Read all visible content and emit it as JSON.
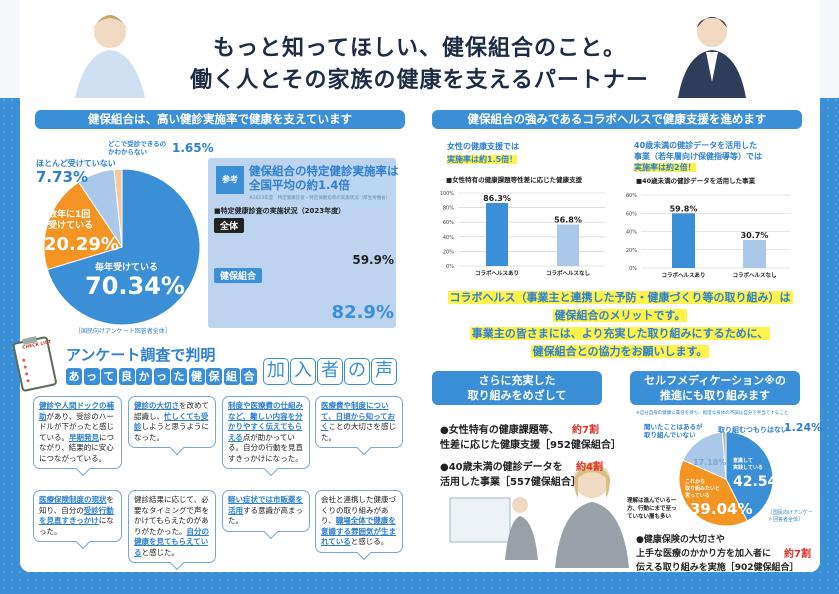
{
  "header": {
    "title1": "もっと知ってほしい、健保組合のこと。",
    "title2": "働く人とその家族の健康を支えるパートナー"
  },
  "left": {
    "heading": "健保組合は、高い健診実施率で健康を支えています",
    "pie": {
      "slices": [
        {
          "label": "毎年受けている",
          "value": 70.34,
          "color": "#3b8fd6"
        },
        {
          "label": "数年に1回受けている",
          "value": 20.29,
          "color": "#f39423"
        },
        {
          "label": "ほとんど受けていない",
          "value": 7.73,
          "color": "#a9c8ea"
        },
        {
          "label": "どこで受診できるのかわからない",
          "value": 1.65,
          "color": "#f5c9a0"
        }
      ],
      "display": [
        "70.34%",
        "20.29%",
        "7.73%",
        "1.65%"
      ],
      "label_lines": {
        "l2a": "数年に1回",
        "l2b": "受けている",
        "l4a": "どこで受診できるの",
        "l4b": "かわからない"
      },
      "source": "［国民向けアンケート回答者全体］"
    },
    "ref": {
      "tag": "参考",
      "title1": "健保組合の特定健診実施率は",
      "title2": "全国平均の約1.4倍",
      "note": "※2023年度　特定健康診査・特定保健指導の実施状況（厚生労働省）",
      "subtitle": "■特定健康診査の実施状況（2023年度）",
      "all_label": "全体",
      "all_value": "59.9%",
      "all_rate": 59.9,
      "kenpo_label": "健保組合",
      "kenpo_value": "82.9%",
      "kenpo_rate": 82.9
    }
  },
  "voices": {
    "heading": "アンケート調査で判明",
    "chips": [
      "あ",
      "っ",
      "て",
      "良",
      "か",
      "っ",
      "た",
      "健",
      "保",
      "組",
      "合"
    ],
    "big": [
      "加",
      "入",
      "者",
      "の",
      "声"
    ],
    "clipboard": "CHECK LIST",
    "bubbles": [
      [
        {
          "t": "健診や人間ドックの補助",
          "u": 1
        },
        {
          "t": "があり、受診のハードルが下がったと感じている。"
        },
        {
          "t": "早期発見",
          "u": 1
        },
        {
          "t": "につながり、結果的に安心につながっている。"
        }
      ],
      [
        {
          "t": "健診の大切さ",
          "u": 1
        },
        {
          "t": "を改めて認識し、"
        },
        {
          "t": "忙しくても受診",
          "u": 1
        },
        {
          "t": "しようと思うようになった。"
        }
      ],
      [
        {
          "t": "制度や医療費の仕組みなど、難しい内容を分かりやすく伝えてもらえる",
          "u": 1
        },
        {
          "t": "点が助かっている。自分の行動を見直すきっかけになった。"
        }
      ],
      [
        {
          "t": "医療費や制度について、日頃から知っておく",
          "u": 1
        },
        {
          "t": "ことの大切さを感じた。"
        }
      ],
      [
        {
          "t": "医療保険制度の現状",
          "u": 1
        },
        {
          "t": "を知り、自分の"
        },
        {
          "t": "受診行動を見直すきっかけ",
          "u": 1
        },
        {
          "t": "になった。"
        }
      ],
      [
        {
          "t": "健診結果に応じて、必要なタイミングで声をかけてもらえたのがありがたかった。"
        },
        {
          "t": "自分の健康を見てもらえている",
          "u": 1
        },
        {
          "t": "と感じた。"
        }
      ],
      [
        {
          "t": "軽い症状では市販薬を活用",
          "u": 1
        },
        {
          "t": "する意識が高まった。"
        }
      ],
      [
        {
          "t": "会社と連携した健康づくりの取り組みがあり、"
        },
        {
          "t": "職場全体で健康を意識する雰囲気が生まれている",
          "u": 1
        },
        {
          "t": "と感じる。"
        }
      ]
    ]
  },
  "right": {
    "heading": "健保組合の強みであるコラボヘルスで健康支援を進めます",
    "chart1_intro1": "女性の健康支援では",
    "chart1_intro2": "実施率は約1.5倍！",
    "chart2_intro1": "40歳未満の健診データを活用した",
    "chart2_intro2": "事業（若年層向け保健指導等）では",
    "chart2_intro3": "実施率は約2倍！",
    "message": [
      "コラボヘルス（事業主と連携した予防・健康づくり等の取り組み）は",
      "健保組合のメリットです。",
      "事業主の皆さまには、より充実した取り組みにするために、",
      "健保組合との協力をお願いします。"
    ]
  },
  "chart_data": [
    {
      "type": "bar",
      "title": "■女性特有の健康課題等性差に応じた健康支援",
      "categories": [
        "コラボヘルスあり",
        "コラボヘルスなし"
      ],
      "values": [
        86.3,
        56.8
      ],
      "labels": [
        "86.3%",
        "56.8%"
      ],
      "ylim": [
        0,
        100
      ],
      "ticks": [
        "0%",
        "20%",
        "40%",
        "60%",
        "80%",
        "100%"
      ],
      "colors": [
        "#3b8fd6",
        "#a9c8ea"
      ]
    },
    {
      "type": "bar",
      "title": "■40歳未満の健診データを活用した事業",
      "categories": [
        "コラボヘルスあり",
        "コラボヘルスなし"
      ],
      "values": [
        59.8,
        30.7
      ],
      "labels": [
        "59.8%",
        "30.7%"
      ],
      "ylim": [
        0,
        80
      ],
      "ticks": [
        "0%",
        "20%",
        "40%",
        "60%",
        "80%"
      ],
      "colors": [
        "#3b8fd6",
        "#a9c8ea"
      ]
    }
  ],
  "future": {
    "heading1": "さらに充実した",
    "heading2": "取り組みをめざして",
    "items": [
      {
        "l1": "●女性特有の健康課題等、",
        "l2": "性差に応じた健康支援［952健保組合］",
        "badge": "約7割"
      },
      {
        "l1": "●40歳未満の健診データを",
        "l2": "活用した事業［557健保組合］",
        "badge": "約4割"
      }
    ]
  },
  "selfmed": {
    "heading1": "セルフメディケーション※の",
    "heading2": "推進にも取り組みます",
    "note": "※自分自身の健康に責任を持ち、軽度な身体の不調は自分で手当てすること",
    "pie": {
      "slices": [
        {
          "label": "意識して実践している",
          "value": 42.54,
          "color": "#3b8fd6"
        },
        {
          "label": "これから取り組みたいと思っている",
          "value": 39.04,
          "color": "#f39423"
        },
        {
          "label": "聞いたことはあるが取り組んでいない",
          "value": 17.18,
          "color": "#a9c8ea"
        },
        {
          "label": "取り組むつもりはない",
          "value": 1.24,
          "color": "#b9b3a8"
        }
      ],
      "display": [
        "42.54%",
        "39.04%",
        "17.18%",
        "1.24%"
      ],
      "lines": {
        "a1": "意識して",
        "a2": "実践している",
        "b1": "これから",
        "b2": "取り組みたいと",
        "b3": "思っている",
        "c1": "聞いたことはあるが",
        "c2": "取り組んでいない"
      },
      "source": "［国民向けアンケート回答者全体］"
    },
    "comment": "理解は進んでいる一方、行動にまで至っていない層も多い",
    "item": {
      "l1": "●健康保険の大切さや",
      "l2": "上手な医療のかかり方を加入者に",
      "l3": "伝える取り組みを実施［902健保組合］",
      "badge": "約7割"
    }
  }
}
